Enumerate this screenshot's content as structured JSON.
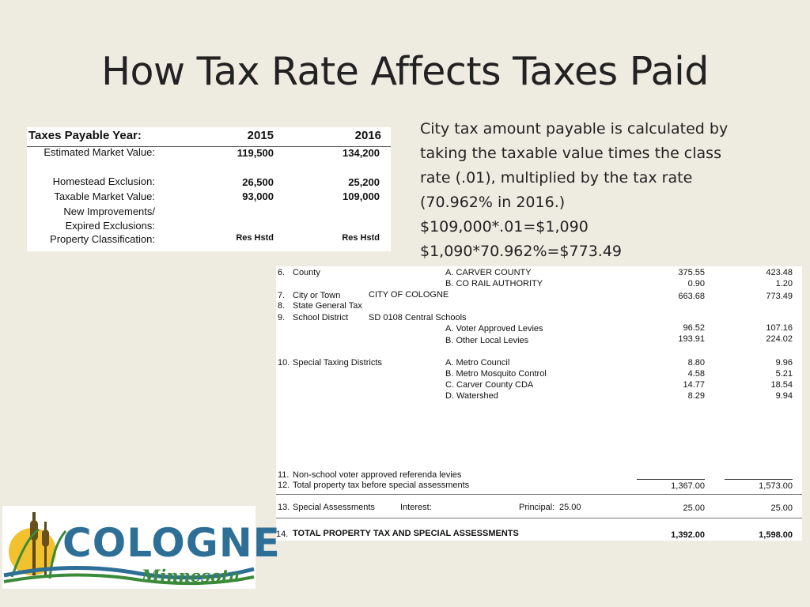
{
  "slide": {
    "title": "How Tax Rate Affects Taxes Paid",
    "explanation": [
      "City tax amount payable is calculated by",
      "taking the taxable value times the class",
      "rate (.01), multiplied by the tax rate",
      "(70.962% in 2016.)",
      "$109,000*.01=$1,090",
      "$1,090*70.962%=$773.49"
    ]
  },
  "valuation_table": {
    "header": {
      "label": "Taxes Payable Year:",
      "col1": "2015",
      "col2": "2016"
    },
    "rows": [
      {
        "label": "Estimated Market Value:",
        "v1": "119,500",
        "v2": "134,200"
      },
      {
        "label": "Homestead Exclusion:",
        "v1": "26,500",
        "v2": "25,200"
      },
      {
        "label": "Taxable Market Value:",
        "v1": "93,000",
        "v2": "109,000"
      },
      {
        "label": "New Improvements/",
        "v1": "",
        "v2": ""
      },
      {
        "label": "Expired Exclusions:",
        "v1": "",
        "v2": ""
      },
      {
        "label": "Property Classification:",
        "v1": "Res Hstd",
        "v2": "Res Hstd"
      }
    ]
  },
  "statement": {
    "county": {
      "num": "6.",
      "label": "County",
      "items": [
        {
          "name": "A. CARVER COUNTY",
          "v2015": "375.55",
          "v2016": "423.48"
        },
        {
          "name": "B. CO RAIL AUTHORITY",
          "v2015": "0.90",
          "v2016": "1.20"
        }
      ]
    },
    "city": {
      "num": "7.",
      "label": "City or Town",
      "name": "CITY OF COLOGNE",
      "v2015": "663.68",
      "v2016": "773.49"
    },
    "state": {
      "num": "8.",
      "label": "State General Tax"
    },
    "school": {
      "num": "9.",
      "label": "School District",
      "name": "SD 0108 Central Schools",
      "items": [
        {
          "name": "A. Voter Approved Levies",
          "v2015": "96.52",
          "v2016": "107.16"
        },
        {
          "name": "B. Other Local Levies",
          "v2015": "193.91",
          "v2016": "224.02"
        }
      ]
    },
    "special": {
      "num": "10.",
      "label": "Special Taxing Districts",
      "items": [
        {
          "name": "A. Metro Council",
          "v2015": "8.80",
          "v2016": "9.96"
        },
        {
          "name": "B. Metro Mosquito Control",
          "v2015": "4.58",
          "v2016": "5.21"
        },
        {
          "name": "C. Carver County CDA",
          "v2015": "14.77",
          "v2016": "18.54"
        },
        {
          "name": "D. Watershed",
          "v2015": "8.29",
          "v2016": "9.94"
        }
      ]
    },
    "nonschool": {
      "num": "11.",
      "label": "Non-school voter approved referenda levies"
    },
    "total_before": {
      "num": "12.",
      "label": "Total property tax before special assessments",
      "v2015": "1,367.00",
      "v2016": "1,573.00"
    },
    "assessments": {
      "num": "13.",
      "label": "Special Assessments",
      "interest_label": "Interest:",
      "principal_label": "Principal:",
      "principal_value": "25.00",
      "v2015": "25.00",
      "v2016": "25.00"
    },
    "grand_total": {
      "num": "14.",
      "label": "TOTAL PROPERTY TAX AND SPECIAL ASSESSMENTS",
      "v2015": "1,392.00",
      "v2016": "1,598.00"
    }
  },
  "logo": {
    "word": "COLOGNE",
    "sub": "Minnesota"
  },
  "colors": {
    "background": "#eeece1",
    "logo_blue": "#2e6f97",
    "logo_green": "#3a8a3a",
    "logo_sun": "#f2c12e"
  }
}
